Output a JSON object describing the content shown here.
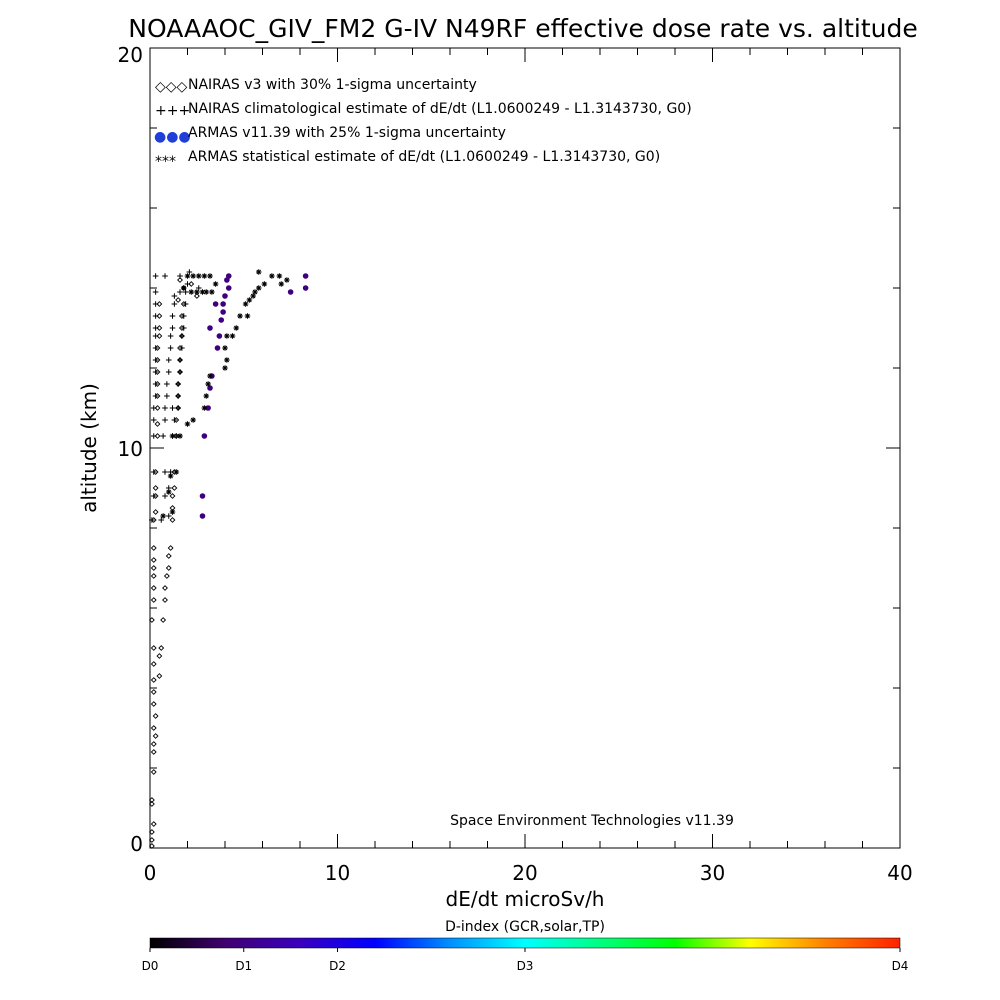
{
  "chart_data": {
    "type": "scatter",
    "title": "NOAAAOC_GIV_FM2 G-IV   N49RF  effective dose rate vs. altitude",
    "xlabel": "dE/dt microSv/h",
    "ylabel": "altitude (km)",
    "xlim": [
      0,
      40
    ],
    "ylim": [
      0,
      20
    ],
    "x_ticks": [
      "0",
      "10",
      "20",
      "30",
      "40"
    ],
    "y_ticks": [
      "0",
      "10",
      "20"
    ],
    "legend_position": "top-left",
    "credit": "Space Environment Technologies v11.39",
    "legend": [
      {
        "key": "nairas",
        "marker": "diamond",
        "symbol": "◇◇◇",
        "label": "NAIRAS v3 with 30% 1-sigma uncertainty"
      },
      {
        "key": "nairas_clim",
        "marker": "plus",
        "symbol": "+++",
        "label": "NAIRAS climatological estimate of dE/dt (L1.0600249 - L1.3143730, G0)"
      },
      {
        "key": "armas",
        "marker": "dot",
        "symbol": "●●●",
        "label": "ARMAS v11.39 with 25% 1-sigma uncertainty"
      },
      {
        "key": "armas_stat",
        "marker": "asterisk",
        "symbol": "***",
        "label": "ARMAS statistical estimate of dE/dt (L1.0600249 - L1.3143730, G0)"
      }
    ],
    "series": [
      {
        "key": "nairas",
        "marker": "diamond",
        "points": [
          [
            0.1,
            0.05
          ],
          [
            0.1,
            0.2
          ],
          [
            0.1,
            0.4
          ],
          [
            0.2,
            0.6
          ],
          [
            0.1,
            1.1
          ],
          [
            0.1,
            1.2
          ],
          [
            0.2,
            1.9
          ],
          [
            0.2,
            2.4
          ],
          [
            0.2,
            2.6
          ],
          [
            0.3,
            2.8
          ],
          [
            0.2,
            3.0
          ],
          [
            0.3,
            3.3
          ],
          [
            0.2,
            3.6
          ],
          [
            0.2,
            3.9
          ],
          [
            0.2,
            4.2
          ],
          [
            0.5,
            4.3
          ],
          [
            0.2,
            4.6
          ],
          [
            0.5,
            4.8
          ],
          [
            0.2,
            5.0
          ],
          [
            0.6,
            5.0
          ],
          [
            0.1,
            5.7
          ],
          [
            0.7,
            5.7
          ],
          [
            0.2,
            6.2
          ],
          [
            0.8,
            6.2
          ],
          [
            0.2,
            6.5
          ],
          [
            0.8,
            6.5
          ],
          [
            0.2,
            6.8
          ],
          [
            0.9,
            6.8
          ],
          [
            0.2,
            7.0
          ],
          [
            1.0,
            7.0
          ],
          [
            0.2,
            7.2
          ],
          [
            1.0,
            7.3
          ],
          [
            0.2,
            7.5
          ],
          [
            1.1,
            7.5
          ],
          [
            0.2,
            8.2
          ],
          [
            1.2,
            8.2
          ],
          [
            0.3,
            8.4
          ],
          [
            1.2,
            8.5
          ],
          [
            0.3,
            8.8
          ],
          [
            1.2,
            8.8
          ],
          [
            0.3,
            9.0
          ],
          [
            1.3,
            9.0
          ],
          [
            0.3,
            9.4
          ],
          [
            1.3,
            9.4
          ],
          [
            0.4,
            10.3
          ],
          [
            1.4,
            10.3
          ],
          [
            0.4,
            10.6
          ],
          [
            1.4,
            10.7
          ],
          [
            0.4,
            11.0
          ],
          [
            1.5,
            11.0
          ],
          [
            0.4,
            11.3
          ],
          [
            1.5,
            11.3
          ],
          [
            0.4,
            11.6
          ],
          [
            1.5,
            11.6
          ],
          [
            0.4,
            11.9
          ],
          [
            1.6,
            11.9
          ],
          [
            0.4,
            12.2
          ],
          [
            1.6,
            12.2
          ],
          [
            0.4,
            12.5
          ],
          [
            1.6,
            12.5
          ],
          [
            0.5,
            12.8
          ],
          [
            1.7,
            12.8
          ],
          [
            0.5,
            13.0
          ],
          [
            1.7,
            13.0
          ],
          [
            0.5,
            13.3
          ],
          [
            1.7,
            13.3
          ],
          [
            0.5,
            13.6
          ],
          [
            1.8,
            13.6
          ],
          [
            1.5,
            13.7
          ],
          [
            2.5,
            13.8
          ],
          [
            1.8,
            14.0
          ],
          [
            2.2,
            14.1
          ],
          [
            1.6,
            14.2
          ]
        ]
      },
      {
        "key": "nairas_clim",
        "marker": "plus",
        "points": [
          [
            0.1,
            8.2
          ],
          [
            0.6,
            8.2
          ],
          [
            1.0,
            8.3
          ],
          [
            0.2,
            8.8
          ],
          [
            0.8,
            8.8
          ],
          [
            1.0,
            9.0
          ],
          [
            0.2,
            9.4
          ],
          [
            0.8,
            9.4
          ],
          [
            1.1,
            9.4
          ],
          [
            0.2,
            10.3
          ],
          [
            0.7,
            10.3
          ],
          [
            1.2,
            10.3
          ],
          [
            1.4,
            10.3
          ],
          [
            0.2,
            10.7
          ],
          [
            0.8,
            10.7
          ],
          [
            1.3,
            10.7
          ],
          [
            0.2,
            11.0
          ],
          [
            0.8,
            11.0
          ],
          [
            1.2,
            11.0
          ],
          [
            1.5,
            11.0
          ],
          [
            0.3,
            11.3
          ],
          [
            0.9,
            11.3
          ],
          [
            1.5,
            11.3
          ],
          [
            0.3,
            11.6
          ],
          [
            0.9,
            11.6
          ],
          [
            1.5,
            11.6
          ],
          [
            0.3,
            11.9
          ],
          [
            1.0,
            11.9
          ],
          [
            1.6,
            11.9
          ],
          [
            0.3,
            12.2
          ],
          [
            1.0,
            12.2
          ],
          [
            1.6,
            12.2
          ],
          [
            0.3,
            12.5
          ],
          [
            1.1,
            12.5
          ],
          [
            1.7,
            12.5
          ],
          [
            0.3,
            12.8
          ],
          [
            1.1,
            12.8
          ],
          [
            1.7,
            12.8
          ],
          [
            0.3,
            13.0
          ],
          [
            1.2,
            13.0
          ],
          [
            1.8,
            13.0
          ],
          [
            0.3,
            13.3
          ],
          [
            1.2,
            13.3
          ],
          [
            1.8,
            13.3
          ],
          [
            0.3,
            13.6
          ],
          [
            1.3,
            13.6
          ],
          [
            1.9,
            13.6
          ],
          [
            0.3,
            13.9
          ],
          [
            1.3,
            13.8
          ],
          [
            1.9,
            13.9
          ],
          [
            1.6,
            13.9
          ],
          [
            2.6,
            14.0
          ],
          [
            2.0,
            14.1
          ],
          [
            0.3,
            14.3
          ],
          [
            0.8,
            14.3
          ],
          [
            1.6,
            14.3
          ],
          [
            2.1,
            14.4
          ]
        ]
      },
      {
        "key": "armas",
        "marker": "dot",
        "shade": 0.12,
        "points": [
          [
            2.8,
            8.3
          ],
          [
            2.8,
            8.8
          ],
          [
            2.9,
            10.3
          ],
          [
            3.1,
            11.0
          ],
          [
            3.2,
            11.5
          ],
          [
            3.3,
            11.8
          ],
          [
            3.6,
            12.5
          ],
          [
            3.7,
            12.8
          ],
          [
            3.8,
            13.2
          ],
          [
            3.9,
            13.4
          ],
          [
            3.9,
            13.6
          ],
          [
            4.0,
            13.8
          ],
          [
            4.2,
            14.0
          ],
          [
            4.1,
            14.2
          ],
          [
            4.2,
            14.3
          ],
          [
            7.5,
            13.9
          ],
          [
            8.3,
            14.0
          ],
          [
            8.3,
            14.3
          ],
          [
            3.2,
            13.0
          ],
          [
            3.5,
            13.6
          ]
        ]
      },
      {
        "key": "armas_stat",
        "marker": "asterisk",
        "points": [
          [
            0.7,
            8.3
          ],
          [
            1.2,
            8.4
          ],
          [
            1.0,
            8.9
          ],
          [
            1.1,
            9.3
          ],
          [
            1.4,
            9.4
          ],
          [
            1.2,
            10.3
          ],
          [
            1.6,
            10.3
          ],
          [
            2.0,
            10.6
          ],
          [
            2.3,
            10.7
          ],
          [
            2.9,
            11.0
          ],
          [
            3.0,
            11.3
          ],
          [
            3.1,
            11.6
          ],
          [
            3.2,
            11.8
          ],
          [
            4.0,
            12.0
          ],
          [
            4.1,
            12.2
          ],
          [
            4.0,
            12.5
          ],
          [
            4.1,
            12.8
          ],
          [
            4.4,
            12.8
          ],
          [
            4.6,
            13.0
          ],
          [
            4.8,
            13.3
          ],
          [
            5.2,
            13.3
          ],
          [
            5.1,
            13.6
          ],
          [
            5.3,
            13.7
          ],
          [
            5.5,
            13.8
          ],
          [
            5.6,
            13.9
          ],
          [
            5.8,
            14.0
          ],
          [
            6.1,
            14.1
          ],
          [
            2.2,
            13.9
          ],
          [
            2.5,
            13.9
          ],
          [
            2.8,
            13.9
          ],
          [
            3.0,
            13.9
          ],
          [
            3.3,
            13.9
          ],
          [
            1.8,
            14.0
          ],
          [
            2.0,
            14.3
          ],
          [
            2.3,
            14.3
          ],
          [
            2.6,
            14.3
          ],
          [
            2.9,
            14.3
          ],
          [
            3.2,
            14.3
          ],
          [
            5.8,
            14.4
          ],
          [
            6.5,
            14.3
          ],
          [
            6.9,
            14.3
          ],
          [
            7.0,
            14.1
          ],
          [
            7.3,
            14.2
          ],
          [
            3.5,
            14.1
          ]
        ]
      }
    ],
    "colorbar": {
      "title": "D-index (GCR,solar,TP)",
      "range": [
        0,
        4
      ],
      "stops": [
        "#000000",
        "#400070",
        "#3a00c0",
        "#0000ff",
        "#0090ff",
        "#00ffff",
        "#00ff80",
        "#00ff00",
        "#ffff00",
        "#ff8000",
        "#ff2000"
      ],
      "ticks": [
        {
          "label": "D0",
          "value": 0
        },
        {
          "label": "D1",
          "value": 0.5
        },
        {
          "label": "D2",
          "value": 1.0
        },
        {
          "label": "D3",
          "value": 2.0
        },
        {
          "label": "D4",
          "value": 4.0
        }
      ]
    }
  }
}
